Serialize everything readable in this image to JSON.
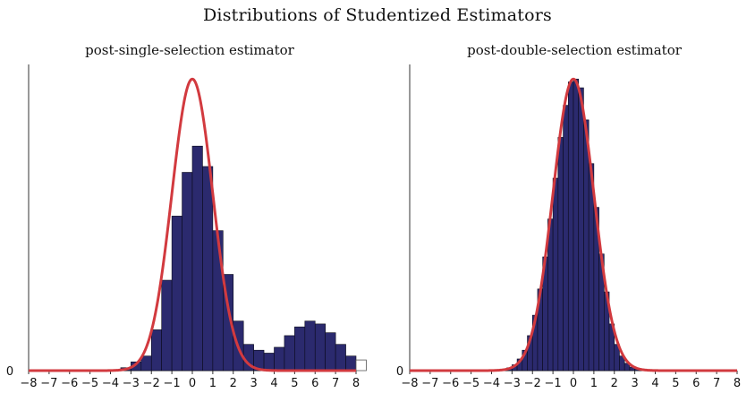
{
  "figure": {
    "title": "Distributions of Studentized Estimators"
  },
  "colors": {
    "bar_fill": "#2b2a6e",
    "bar_edge": "#0a0a1a",
    "curve": "#d23a3f",
    "axis": "#333333"
  },
  "chart_data": [
    {
      "type": "bar",
      "title": "post-single-selection estimator",
      "xlabel": "",
      "ylabel": "",
      "xlim": [
        -8,
        8
      ],
      "ylim": [
        0,
        1.05
      ],
      "x_ticks": [
        "−8",
        "−7",
        "−6",
        "−5",
        "−4",
        "−3",
        "−2",
        "−1",
        "0",
        "1",
        "2",
        "3",
        "4",
        "5",
        "6",
        "7",
        "8"
      ],
      "y_ticks": [
        "0"
      ],
      "bin_width": 0.5,
      "bins_x": [
        -3.25,
        -2.75,
        -2.25,
        -1.75,
        -1.25,
        -0.75,
        -0.25,
        0.25,
        0.75,
        1.25,
        1.75,
        2.25,
        2.75,
        3.25,
        3.75,
        4.25,
        4.75,
        5.25,
        5.75,
        6.25,
        6.75,
        7.25,
        7.75
      ],
      "series": [
        {
          "type": "bar",
          "values": [
            0.01,
            0.03,
            0.05,
            0.14,
            0.31,
            0.53,
            0.68,
            0.77,
            0.7,
            0.48,
            0.33,
            0.17,
            0.09,
            0.07,
            0.06,
            0.08,
            0.12,
            0.15,
            0.17,
            0.16,
            0.13,
            0.09,
            0.05
          ]
        },
        {
          "type": "line",
          "curve": "normal",
          "mean": 0,
          "sd": 1,
          "peak": 1.0
        }
      ],
      "extra_marks": [
        {
          "type": "empty-bin",
          "x": 8.25,
          "value": 0.012
        }
      ],
      "grid": false,
      "legend": "none"
    },
    {
      "type": "bar",
      "title": "post-double-selection estimator",
      "xlabel": "",
      "ylabel": "",
      "xlim": [
        -8,
        8
      ],
      "ylim": [
        0,
        1.05
      ],
      "x_ticks": [
        "−8",
        "−7",
        "−6",
        "−5",
        "−4",
        "−3",
        "−2",
        "−1",
        "0",
        "1",
        "2",
        "3",
        "4",
        "5",
        "6",
        "7",
        "8"
      ],
      "y_ticks": [
        "0"
      ],
      "bin_width": 0.25,
      "bins_x": [
        -3.375,
        -3.125,
        -2.875,
        -2.625,
        -2.375,
        -2.125,
        -1.875,
        -1.625,
        -1.375,
        -1.125,
        -0.875,
        -0.625,
        -0.375,
        -0.125,
        0.125,
        0.375,
        0.625,
        0.875,
        1.125,
        1.375,
        1.625,
        1.875,
        2.125,
        2.375,
        2.625,
        2.875,
        3.125,
        3.375
      ],
      "series": [
        {
          "type": "bar",
          "values": [
            0.004,
            0.01,
            0.02,
            0.04,
            0.07,
            0.12,
            0.19,
            0.28,
            0.39,
            0.52,
            0.66,
            0.8,
            0.91,
            0.99,
            1.0,
            0.97,
            0.86,
            0.71,
            0.56,
            0.4,
            0.27,
            0.16,
            0.09,
            0.05,
            0.025,
            0.012,
            0.005,
            0.002
          ]
        },
        {
          "type": "line",
          "curve": "normal",
          "mean": 0,
          "sd": 1,
          "peak": 1.0
        }
      ],
      "grid": false,
      "legend": "none"
    }
  ]
}
